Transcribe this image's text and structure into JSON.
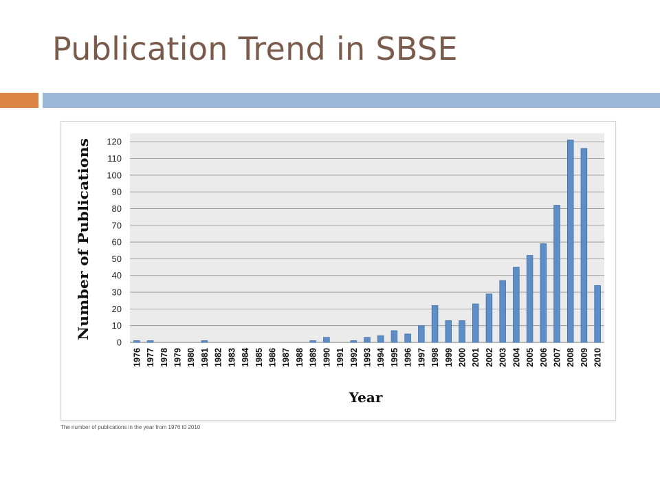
{
  "slide": {
    "title": "Publication Trend in SBSE",
    "caption": "The number of publications in the year from 1976 t0 2010"
  },
  "colors": {
    "title": "#7a5a4a",
    "accent_orange": "#dc8444",
    "accent_blue": "#9ab8d6",
    "bar_fill": "#5f8ec6",
    "bar_stroke": "#3d6da6",
    "plot_bg": "#ebebeb",
    "grid": "#8c8c8c"
  },
  "chart_data": {
    "type": "bar",
    "title": "",
    "xlabel": "Year",
    "ylabel": "Number of Publications",
    "ylim": [
      0,
      125
    ],
    "yticks": [
      0,
      10,
      20,
      30,
      40,
      50,
      60,
      70,
      80,
      90,
      100,
      110,
      120
    ],
    "grid": true,
    "legend": "none",
    "categories": [
      "1976",
      "1977",
      "1978",
      "1979",
      "1980",
      "1981",
      "1982",
      "1983",
      "1984",
      "1985",
      "1986",
      "1987",
      "1988",
      "1989",
      "1990",
      "1991",
      "1992",
      "1993",
      "1994",
      "1995",
      "1996",
      "1997",
      "1998",
      "1999",
      "2000",
      "2001",
      "2002",
      "2003",
      "2004",
      "2005",
      "2006",
      "2007",
      "2008",
      "2009",
      "2010"
    ],
    "values": [
      1,
      1,
      0,
      0,
      0,
      1,
      0,
      0,
      0,
      0,
      0,
      0,
      0,
      1,
      3,
      0,
      1,
      3,
      4,
      7,
      5,
      10,
      22,
      13,
      13,
      23,
      29,
      37,
      45,
      52,
      59,
      82,
      121,
      116,
      34
    ]
  }
}
